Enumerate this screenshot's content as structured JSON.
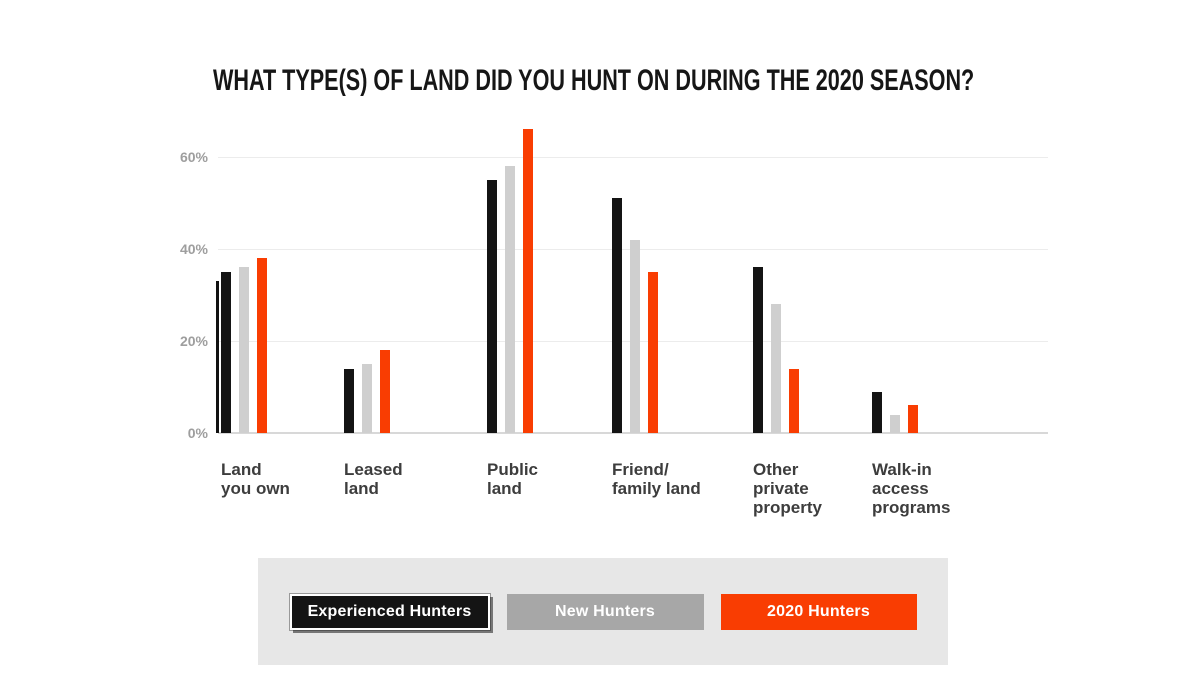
{
  "title": "WHAT TYPE(S) OF LAND DID YOU HUNT ON DURING THE 2020 SEASON?",
  "colors": {
    "background": "#ffffff",
    "title": "#161616",
    "grid": "#ececec",
    "baseline": "#d8d8d8",
    "tick_label": "#9e9e9e",
    "category_label": "#3d3d3d",
    "legend_panel": "#e7e7e7",
    "experienced_bar": "#141414",
    "new_bar": "#cfcfcf",
    "hunters2020_bar": "#f93d02",
    "new_legend_chip": "#a7a7a7"
  },
  "chart_data": {
    "type": "bar",
    "title": "WHAT TYPE(S) OF LAND DID YOU HUNT ON DURING THE 2020 SEASON?",
    "categories": [
      "Land you own",
      "Leased land",
      "Public land",
      "Friend/ family land",
      "Other private property",
      "Walk-in access programs"
    ],
    "category_label_lines": [
      [
        "Land",
        "you own"
      ],
      [
        "Leased",
        "land"
      ],
      [
        "Public",
        "land"
      ],
      [
        "Friend/",
        "family land"
      ],
      [
        "Other",
        "private",
        "property"
      ],
      [
        "Walk-in",
        "access",
        "programs"
      ]
    ],
    "series": [
      {
        "name": "Experienced Hunters",
        "color": "#141414",
        "values": [
          35,
          14,
          55,
          51,
          36,
          9
        ]
      },
      {
        "name": "New Hunters",
        "color": "#cfcfcf",
        "values": [
          36,
          15,
          58,
          42,
          28,
          4
        ]
      },
      {
        "name": "2020 Hunters",
        "color": "#f93d02",
        "values": [
          38,
          18,
          66,
          35,
          14,
          6
        ]
      }
    ],
    "y_ticks": [
      "60%",
      "40%",
      "20%",
      "0%"
    ],
    "y_tick_values": [
      60,
      40,
      20,
      0
    ],
    "ylabel": "",
    "xlabel": "",
    "ylim": [
      0,
      70
    ],
    "grid": true,
    "legend_position": "bottom",
    "axis_accent_bar": {
      "category": "Land you own",
      "value": 33
    }
  },
  "legend": {
    "items": [
      {
        "label": "Experienced Hunters",
        "color": "#141414",
        "outlined": true
      },
      {
        "label": "New Hunters",
        "color": "#a7a7a7",
        "outlined": false
      },
      {
        "label": "2020 Hunters",
        "color": "#f93d02",
        "outlined": false
      }
    ]
  }
}
